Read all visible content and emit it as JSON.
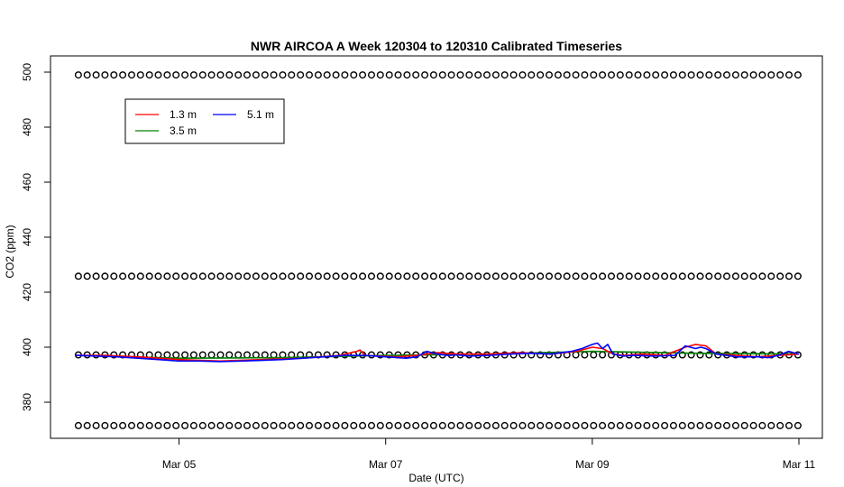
{
  "chart_data": {
    "type": "line",
    "title": "NWR AIRCOA A  Week 120304 to 120310  Calibrated Timeseries",
    "xlabel": "Date (UTC)",
    "ylabel": "CO2 (ppm)",
    "x_ticks": [
      {
        "label": "Mar 05",
        "day": 5
      },
      {
        "label": "Mar 07",
        "day": 7
      },
      {
        "label": "Mar 09",
        "day": 9
      },
      {
        "label": "Mar 11",
        "day": 11
      }
    ],
    "y_ticks": [
      380,
      400,
      420,
      440,
      460,
      480,
      500
    ],
    "xlim_days": [
      4.0,
      11.0
    ],
    "ylim": [
      367,
      502
    ],
    "grid": false,
    "legend_position": "top-left",
    "legend": [
      {
        "name": "1.3 m",
        "color": "#ff0000"
      },
      {
        "name": "5.1 m",
        "color": "#0000ff"
      },
      {
        "name": "3.5 m",
        "color": "#008000"
      }
    ],
    "series": [
      {
        "name": "1.3 m",
        "color": "#ff0000",
        "day": [
          4.0,
          4.3,
          4.6,
          5.0,
          5.4,
          5.8,
          6.2,
          6.55,
          6.72,
          6.75,
          6.8,
          7.1,
          7.3,
          7.5,
          7.7,
          8.0,
          8.3,
          8.6,
          8.85,
          9.0,
          9.1,
          9.2,
          9.3,
          9.5,
          9.7,
          9.9,
          10.0,
          10.1,
          10.2,
          10.4,
          10.6,
          10.8,
          11.0
        ],
        "co2": [
          397,
          397,
          396.5,
          395.5,
          395,
          395.5,
          396,
          397,
          398.5,
          399,
          397,
          396.5,
          397,
          398,
          397.5,
          397.5,
          398,
          397.5,
          398.5,
          400,
          399.5,
          397.5,
          397,
          397.5,
          397,
          400,
          401,
          400.5,
          397.5,
          397,
          396.5,
          397,
          397.5
        ]
      },
      {
        "name": "5.1 m",
        "color": "#0000ff",
        "day": [
          4.0,
          4.2,
          4.4,
          4.6,
          4.8,
          5.0,
          5.2,
          5.4,
          5.6,
          5.8,
          6.0,
          6.2,
          6.4,
          6.6,
          6.8,
          7.0,
          7.2,
          7.3,
          7.4,
          7.5,
          7.6,
          7.7,
          7.8,
          8.0,
          8.2,
          8.4,
          8.6,
          8.8,
          8.9,
          9.0,
          9.05,
          9.1,
          9.15,
          9.2,
          9.3,
          9.4,
          9.6,
          9.8,
          9.9,
          10.0,
          10.05,
          10.1,
          10.2,
          10.4,
          10.6,
          10.7,
          10.8,
          10.9,
          11.0
        ],
        "co2": [
          397,
          396.8,
          396.5,
          396,
          395.5,
          395,
          395,
          394.8,
          395,
          395.2,
          395.5,
          396,
          396.5,
          397,
          397,
          396.5,
          396,
          396.5,
          398.5,
          397.5,
          397,
          397.2,
          396.8,
          397,
          397.5,
          397.8,
          397.5,
          398.5,
          399.5,
          401,
          401.5,
          399.5,
          401,
          397.5,
          396.8,
          397,
          396.8,
          397,
          400.5,
          399.5,
          400,
          399.5,
          397.5,
          396.5,
          396.5,
          396.2,
          397,
          398.5,
          397.5
        ]
      },
      {
        "name": "3.5 m",
        "color": "#008000",
        "day": [
          4.0,
          5.0,
          6.0,
          7.0,
          8.0,
          9.0,
          10.0,
          11.0
        ],
        "co2": [
          397,
          396,
          396.2,
          397,
          397.5,
          398.5,
          397.8,
          397.5
        ]
      }
    ],
    "reference_marker_levels": [
      371.5,
      397.2,
      425.8,
      499
    ]
  }
}
